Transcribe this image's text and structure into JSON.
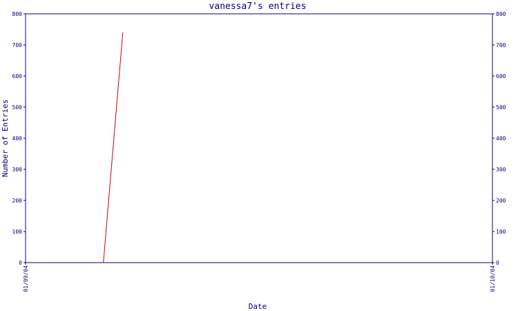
{
  "chart_data": {
    "type": "line",
    "title": "vanessa7's entries",
    "xlabel": "Date",
    "ylabel": "Number of Entries",
    "x_tick_labels": [
      "01/09/04",
      "01/10/04"
    ],
    "xlim": [
      "01/09/04",
      "01/10/04"
    ],
    "ylim": [
      0,
      800
    ],
    "y_ticks": [
      0,
      100,
      200,
      300,
      400,
      500,
      600,
      700,
      800
    ],
    "y_axis_sides": [
      "left",
      "right"
    ],
    "grid": false,
    "series": [
      {
        "x": [
          "01/09/04 04:00",
          "01/09/04 05:00"
        ],
        "y": [
          0,
          740
        ]
      }
    ]
  },
  "colors": {
    "axis": "#000080",
    "series": "#cc0000",
    "background": "#ffffff"
  }
}
